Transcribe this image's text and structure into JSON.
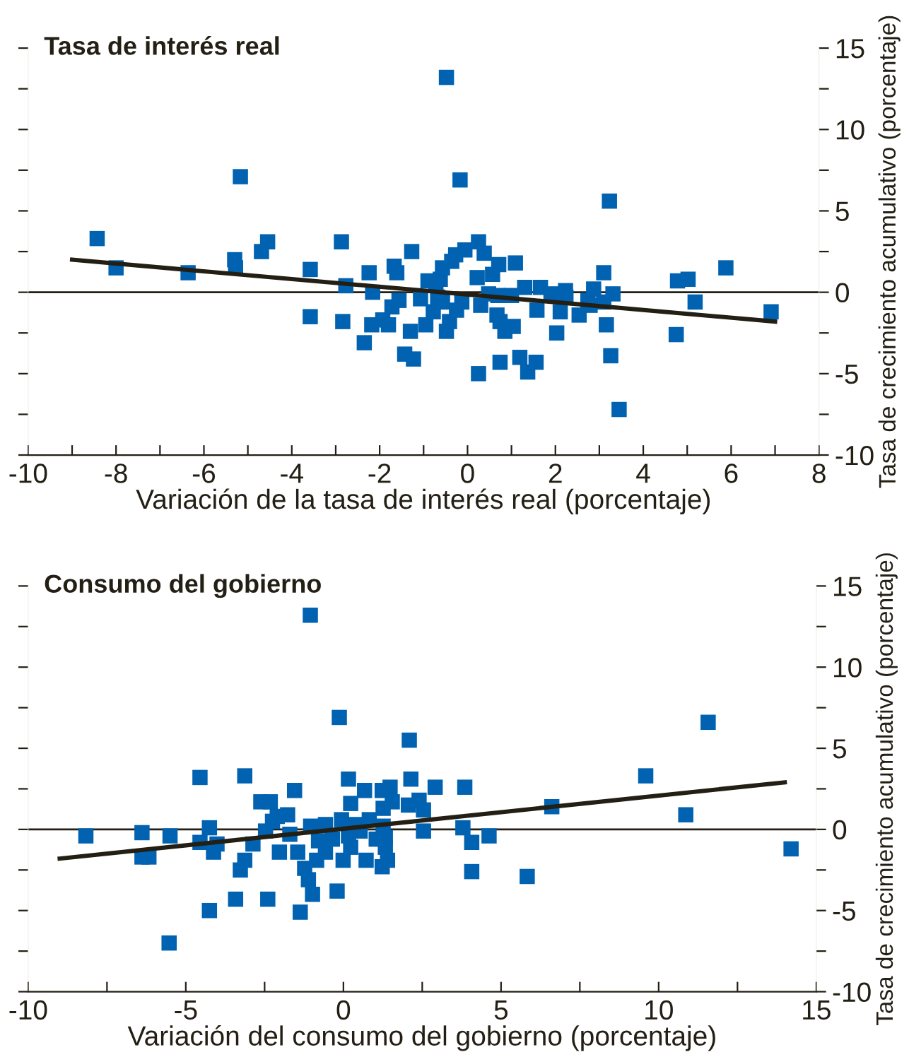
{
  "chart_data": [
    {
      "type": "scatter",
      "title": "Tasa de interés real",
      "xlabel": "Variación de la tasa de interés real (porcentaje)",
      "ylabel": "Tasa de crecimiento acumulativo (porcentaje)",
      "xlim": [
        -10,
        8
      ],
      "ylim": [
        -10,
        15
      ],
      "xticks": [
        -10,
        {
          "value": -9,
          "label": null
        },
        -8,
        {
          "value": -7,
          "label": null
        },
        -6,
        {
          "value": -5,
          "label": null
        },
        -4,
        {
          "value": -3,
          "label": null
        },
        -2,
        {
          "value": -1,
          "label": null
        },
        0,
        {
          "value": 1,
          "label": null
        },
        2,
        {
          "value": 3,
          "label": null
        },
        4,
        {
          "value": 5,
          "label": null
        },
        6,
        {
          "value": 7,
          "label": null
        },
        8
      ],
      "yticks": [
        -10,
        {
          "value": -7.5,
          "label": null
        },
        -5,
        {
          "value": -2.5,
          "label": null
        },
        0,
        {
          "value": 2.5,
          "label": null
        },
        5,
        {
          "value": 7.5,
          "label": null
        },
        10,
        {
          "value": 12.5,
          "label": null
        },
        15
      ],
      "ref_lines": [
        {
          "axis": "y",
          "value": 0,
          "color": "#231f14"
        }
      ],
      "series": [
        {
          "marker": "square",
          "color": "#0062b0",
          "x": [
            -8.43,
            -8.0,
            -6.36,
            -5.3,
            -5.28,
            -5.17,
            -4.69,
            -4.55,
            -3.58,
            -3.58,
            -2.87,
            -2.77,
            -2.84,
            -2.24,
            -2.16,
            -2.18,
            -2.35,
            -1.93,
            -1.8,
            -1.67,
            -1.61,
            -1.27,
            -1.72,
            -1.56,
            -1.3,
            -1.43,
            -1.23,
            -1.07,
            -0.95,
            -0.9,
            -0.78,
            -0.62,
            -0.57,
            -0.48,
            -0.48,
            -0.68,
            -0.17,
            3.23,
            0.25,
            0.38,
            -0.06,
            -0.27,
            -0.36,
            0.22,
            0.57,
            0.71,
            1.09,
            1.3,
            1.66,
            0.48,
            0.69,
            1.0,
            0.3,
            0.67,
            0.74,
            0.85,
            1.04,
            0.74,
            0.25,
            1.19,
            1.37,
            1.56,
            1.58,
            1.9,
            2.11,
            2.03,
            2.23,
            2.24,
            2.54,
            2.74,
            2.87,
            2.79,
            3.1,
            3.1,
            3.16,
            3.31,
            3.26,
            3.45,
            4.78,
            5.02,
            4.75,
            5.18,
            5.88,
            6.91,
            -0.72,
            -0.57,
            -0.41,
            -0.25,
            -0.13
          ],
          "values": [
            3.3,
            1.5,
            1.2,
            2.0,
            1.5,
            7.1,
            2.5,
            3.1,
            1.4,
            -1.5,
            3.1,
            0.4,
            -1.8,
            1.2,
            0,
            -2.0,
            -3.1,
            -1.7,
            -2.0,
            1.6,
            1.2,
            2.5,
            -0.9,
            -0.5,
            -2.4,
            -3.8,
            -4.1,
            -0.4,
            -2.0,
            0.7,
            -1.2,
            0.8,
            1.5,
            -2.4,
            13.2,
            -0.3,
            6.9,
            5.6,
            3.1,
            2.4,
            2.6,
            2.3,
            1.9,
            0.9,
            1.1,
            1.7,
            1.8,
            0.3,
            0.3,
            -0.1,
            -0.2,
            -0.2,
            -0.8,
            -1.4,
            -1.8,
            -2.4,
            -2.1,
            -4.3,
            -5.0,
            -4.0,
            -4.9,
            -4.3,
            -1.1,
            -0.1,
            -1.2,
            -2.5,
            0.1,
            -0.3,
            -1.4,
            -0.5,
            0.2,
            -0.8,
            1.2,
            -0.6,
            -2.0,
            -0.1,
            -3.9,
            -7.2,
            0.7,
            0.8,
            -2.6,
            -0.6,
            1.5,
            -1.2,
            0.5,
            -0.6,
            -1.8,
            -1.1,
            -0.6
          ]
        },
        {
          "type": "line",
          "color": "#231f14",
          "x": [
            -9,
            7
          ],
          "values": [
            2.0,
            -1.8
          ]
        }
      ]
    },
    {
      "type": "scatter",
      "title": "Consumo del gobierno",
      "xlabel": "Variación del consumo del gobierno (porcentaje)",
      "ylabel": "Tasa de crecimiento acumulativo (porcentaje)",
      "xlim": [
        -10,
        15
      ],
      "ylim": [
        -10,
        15
      ],
      "xticks": [
        -10,
        {
          "value": -7.5,
          "label": null
        },
        -5,
        {
          "value": -2.5,
          "label": null
        },
        0,
        {
          "value": 2.5,
          "label": null
        },
        5,
        {
          "value": 7.5,
          "label": null
        },
        10,
        {
          "value": 12.5,
          "label": null
        },
        15
      ],
      "yticks": [
        -10,
        {
          "value": -7.5,
          "label": null
        },
        -5,
        {
          "value": -2.5,
          "label": null
        },
        0,
        {
          "value": 2.5,
          "label": null
        },
        5,
        {
          "value": 7.5,
          "label": null
        },
        10,
        {
          "value": 12.5,
          "label": null
        },
        15
      ],
      "ref_lines": [
        {
          "axis": "y",
          "value": 0,
          "color": "#231f14"
        }
      ],
      "series": [
        {
          "marker": "square",
          "color": "#0062b0",
          "x": [
            -1.05,
            -0.13,
            2.09,
            -4.55,
            -3.13,
            -1.55,
            0.16,
            2.14,
            2.91,
            1.48,
            0.67,
            1.23,
            -2.62,
            -2.32,
            0.23,
            1.55,
            2.06,
            2.4,
            2.54,
            -1.77,
            -2.25,
            -2.1,
            1.26,
            -8.17,
            -6.39,
            -6.39,
            -6.17,
            -5.5,
            -4.55,
            -4.25,
            -4.01,
            -4.12,
            -2.87,
            -3.13,
            -3.27,
            -2.47,
            -2.03,
            -1.7,
            -1.45,
            -1.23,
            -1.11,
            -0.98,
            -1.37,
            -2.4,
            -3.42,
            -4.25,
            -5.53,
            -0.2,
            -0.01,
            0.72,
            1.23,
            1.4,
            -0.85,
            -0.57,
            0.23,
            -1.04,
            -0.35,
            -0.06,
            0.38,
            0.82,
            1.04,
            1.33,
            1.26,
            2.54,
            0.16,
            -0.79,
            -0.57,
            0.53,
            1.33,
            11.57,
            9.59,
            10.86,
            14.2,
            6.61,
            5.83,
            4.62,
            4.07,
            4.07,
            3.85,
            3.79
          ],
          "values": [
            13.2,
            6.9,
            5.5,
            3.2,
            3.3,
            2.4,
            3.1,
            3.1,
            2.6,
            2.6,
            2.4,
            2.4,
            1.7,
            1.7,
            1.6,
            1.7,
            1.5,
            1.8,
            1.2,
            0.9,
            0.5,
            0.8,
            1.3,
            -0.4,
            -0.2,
            -1.7,
            -1.7,
            -0.4,
            -0.8,
            0.1,
            -0.9,
            -1.4,
            -0.9,
            -1.9,
            -2.5,
            -0.1,
            -1.4,
            -0.3,
            -1.4,
            -2.4,
            -3.1,
            -4.0,
            -5.1,
            -4.3,
            -4.3,
            -5.0,
            -7.0,
            -3.8,
            -1.9,
            -1.9,
            -2.3,
            -1.9,
            -1.9,
            -1.4,
            -1.1,
            0.2,
            -0.6,
            0.6,
            0.3,
            0.6,
            -0.6,
            -0.5,
            0.2,
            -0.1,
            -0.4,
            -0.7,
            0.3,
            -0.1,
            -1.1,
            6.6,
            3.3,
            0.9,
            -1.2,
            1.4,
            -2.9,
            -0.4,
            -0.8,
            -2.6,
            2.6,
            0.1
          ]
        },
        {
          "type": "line",
          "color": "#231f14",
          "x": [
            -9,
            14
          ],
          "values": [
            -1.8,
            2.9
          ]
        }
      ]
    }
  ]
}
